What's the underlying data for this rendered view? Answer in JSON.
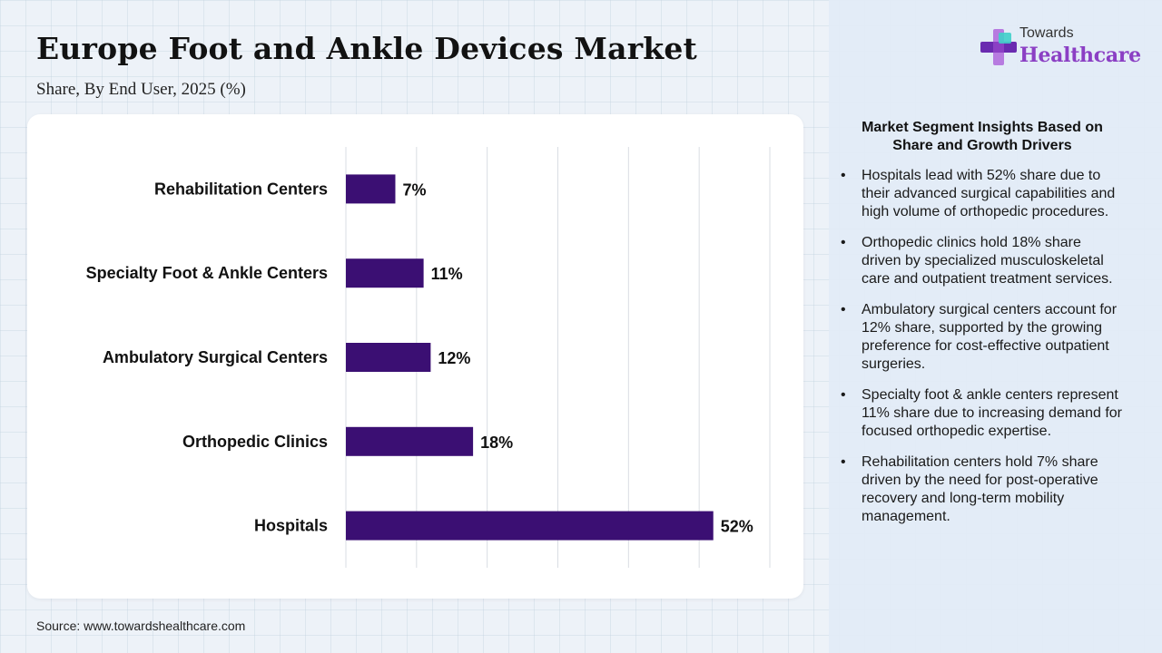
{
  "header": {
    "title": "Europe Foot and Ankle Devices Market",
    "subtitle": "Share, By End User, 2025 (%)"
  },
  "logo": {
    "line1": "Towards",
    "line2": "Healthcare"
  },
  "chart_data": {
    "type": "bar",
    "orientation": "horizontal",
    "title": "Europe Foot and Ankle Devices Market",
    "subtitle": "Share, By End User, 2025 (%)",
    "categories": [
      "Rehabilitation Centers",
      "Specialty Foot & Ankle Centers",
      "Ambulatory Surgical Centers",
      "Orthopedic Clinics",
      "Hospitals"
    ],
    "values": [
      7,
      11,
      12,
      18,
      52
    ],
    "labels": [
      "7%",
      "11%",
      "12%",
      "18%",
      "52%"
    ],
    "xlim": [
      0,
      60
    ],
    "grid": true,
    "bar_color": "#3b0f73"
  },
  "insights": {
    "title": "Market Segment Insights Based on Share and Growth Drivers",
    "items": [
      "Hospitals lead with 52% share due to their advanced surgical capabilities and high volume of orthopedic procedures.",
      "Orthopedic clinics hold 18% share driven by specialized musculoskeletal care and outpatient treatment services.",
      "Ambulatory surgical centers account for 12% share, supported by the growing preference for cost-effective outpatient surgeries.",
      "Specialty foot & ankle centers represent 11% share due to increasing demand for focused orthopedic expertise.",
      "Rehabilitation centers hold 7% share driven by the need for post-operative recovery and long-term mobility management."
    ]
  },
  "source": "Source: www.towardshealthcare.com",
  "colors": {
    "accent": "#8b3fc4",
    "bar": "#3b0f73",
    "logo_cross_light": "#b77be0",
    "logo_cross_dark": "#6a2bb0"
  }
}
